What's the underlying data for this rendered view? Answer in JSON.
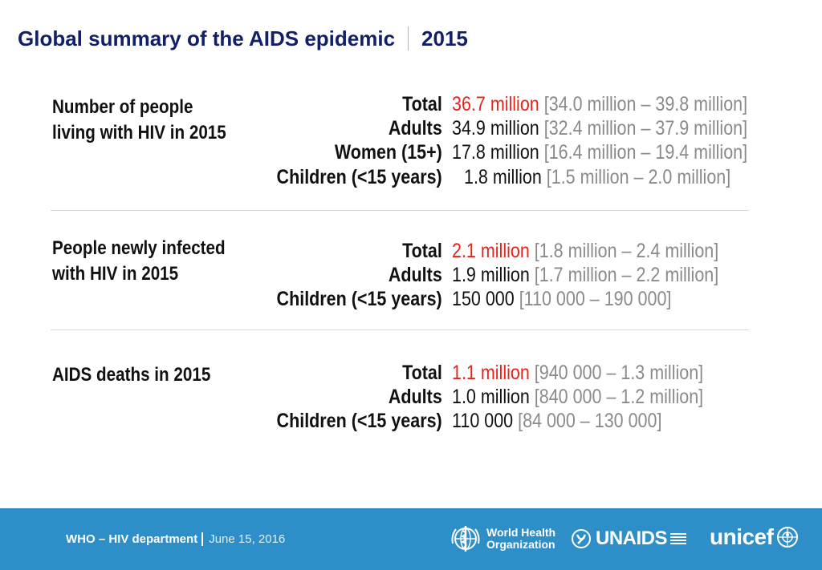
{
  "title": {
    "main": "Global summary of the AIDS epidemic",
    "year": "2015"
  },
  "sections": [
    {
      "label_lines": [
        "Number of people",
        "living with HIV in 2015"
      ],
      "rows": [
        {
          "label": "Total",
          "value": "36.7 million",
          "range": "[34.0 million – 39.8 million]",
          "highlight": true
        },
        {
          "label": "Adults",
          "value": "34.9 million",
          "range": "[32.4 million – 37.9 million]",
          "highlight": false
        },
        {
          "label": "Women (15+)",
          "value": "17.8 million",
          "range": "[16.4 million – 19.4 million]",
          "highlight": false
        },
        {
          "label": "Children (<15 years)",
          "value": "1.8 million",
          "range": "[1.5 million – 2.0 million]",
          "highlight": false
        }
      ]
    },
    {
      "label_lines": [
        "People newly infected",
        "with HIV in 2015"
      ],
      "rows": [
        {
          "label": "Total",
          "value": "2.1 million",
          "range": "[1.8 million – 2.4 million]",
          "highlight": true
        },
        {
          "label": "Adults",
          "value": "1.9 million",
          "range": "[1.7 million – 2.2 million]",
          "highlight": false
        },
        {
          "label": "Children (<15 years)",
          "value": "150 000",
          "range": "[110 000 – 190 000]",
          "highlight": false
        }
      ]
    },
    {
      "label_lines": [
        "AIDS deaths in 2015"
      ],
      "rows": [
        {
          "label": "Total",
          "value": "1.1 million",
          "range": "[940 000 – 1.3 million]",
          "highlight": true
        },
        {
          "label": "Adults",
          "value": "1.0 million",
          "range": "[840 000 – 1.2 million]",
          "highlight": false
        },
        {
          "label": "Children (<15 years)",
          "value": "110 000",
          "range": "[84 000 – 130 000]",
          "highlight": false
        }
      ]
    }
  ],
  "footer": {
    "department": "WHO – HIV department",
    "date": "June 15, 2016",
    "logos": {
      "who": [
        "World Health",
        "Organization"
      ],
      "unaids": "UNAIDS",
      "unicef": "unicef"
    }
  },
  "colors": {
    "title": "#122069",
    "highlight": "#e8231a",
    "range": "#8a8a8a",
    "footer_bg": "#2e8ec7"
  }
}
